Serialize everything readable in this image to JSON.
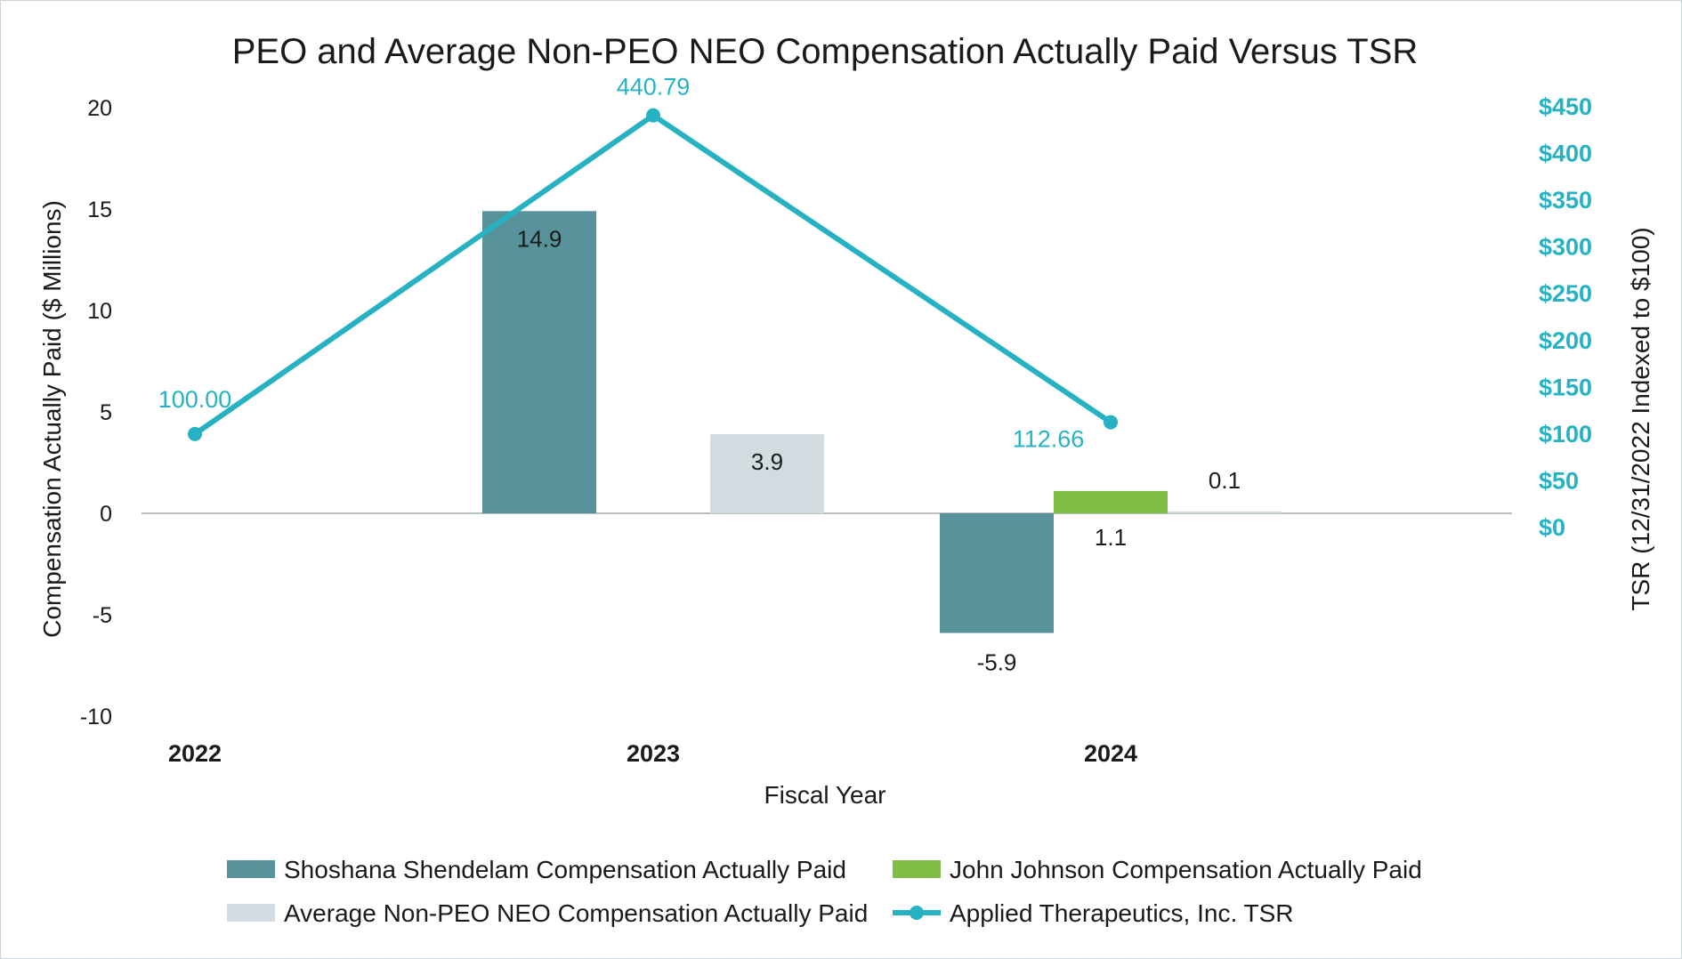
{
  "chart_data": {
    "type": "bar",
    "title": "PEO and Average Non-PEO NEO Compensation Actually Paid Versus TSR",
    "categories": [
      "2022",
      "2023",
      "2024"
    ],
    "xlabel": "Fiscal Year",
    "ylabel": "Compensation Actually Paid ($ Millions)",
    "ylabel_right": "TSR (12/31/2022 Indexed to $100)",
    "ylim": [
      -10,
      20
    ],
    "y_ticks": [
      "20",
      "15",
      "10",
      "5",
      "0",
      "-5",
      "-10"
    ],
    "y_ticks_values": [
      20,
      15,
      10,
      5,
      0,
      -5,
      -10
    ],
    "ylim_right": [
      0,
      450
    ],
    "y_ticks_right": [
      "$450",
      "$400",
      "$350",
      "$300",
      "$250",
      "$200",
      "$150",
      "$100",
      "$50",
      "$0"
    ],
    "y_ticks_right_values": [
      450,
      400,
      350,
      300,
      250,
      200,
      150,
      100,
      50,
      0
    ],
    "grid": false,
    "legend_position": "bottom",
    "series": [
      {
        "name": "Shoshana Shendelam Compensation Actually Paid",
        "type": "bar",
        "color": "#58929a",
        "values": [
          null,
          14.9,
          -5.9
        ],
        "labels": [
          "",
          "14.9",
          "-5.9"
        ]
      },
      {
        "name": "John Johnson Compensation Actually Paid",
        "type": "bar",
        "color": "#7ebe45",
        "values": [
          null,
          null,
          1.1
        ],
        "labels": [
          "",
          "",
          "1.1"
        ]
      },
      {
        "name": "Average Non-PEO NEO Compensation Actually Paid",
        "type": "bar",
        "color": "#d0dcdf",
        "values": [
          null,
          3.9,
          0.1
        ],
        "labels": [
          "",
          "3.9",
          "0.1"
        ]
      },
      {
        "name": "Applied Therapeutics, Inc. TSR",
        "type": "line",
        "axis": "right",
        "color": "#27b2c3",
        "values": [
          100.0,
          440.79,
          112.66
        ],
        "labels": [
          "100.00",
          "440.79",
          "112.66"
        ]
      }
    ]
  }
}
